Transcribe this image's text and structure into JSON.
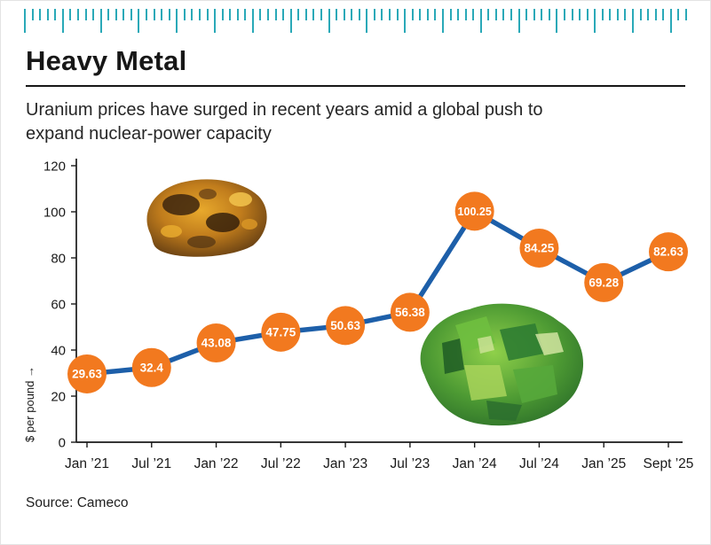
{
  "header": {
    "title": "Heavy Metal",
    "subtitle": "Uranium prices have surged in recent years amid a global push to expand nuclear-power capacity"
  },
  "source": "Source: Cameco",
  "colors": {
    "accent_orange": "#f2791f",
    "line_blue": "#1d5fa9",
    "ruler_teal": "#2aa9b8",
    "axis_black": "#1a1a1a"
  },
  "chart_data": {
    "type": "line",
    "categories": [
      "Jan ’21",
      "Jul ’21",
      "Jan ’22",
      "Jul ’22",
      "Jan ’23",
      "Jul ’23",
      "Jan ’24",
      "Jul ’24",
      "Jan ’25",
      "Sept ’25"
    ],
    "values": [
      29.63,
      32.4,
      43.08,
      47.75,
      50.63,
      56.38,
      100.25,
      84.25,
      69.28,
      82.63
    ],
    "labels": [
      "29.63",
      "32.4",
      "43.08",
      "47.75",
      "50.63",
      "56.38",
      "100.25",
      "84.25",
      "69.28",
      "82.63"
    ],
    "title": "",
    "xlabel": "",
    "ylabel": "$ per pound →",
    "ylim": [
      0,
      120
    ],
    "yticks": [
      0,
      20,
      40,
      60,
      80,
      100,
      120
    ],
    "grid": false,
    "legend": "none",
    "marker_style": "orange-circle-with-value"
  }
}
